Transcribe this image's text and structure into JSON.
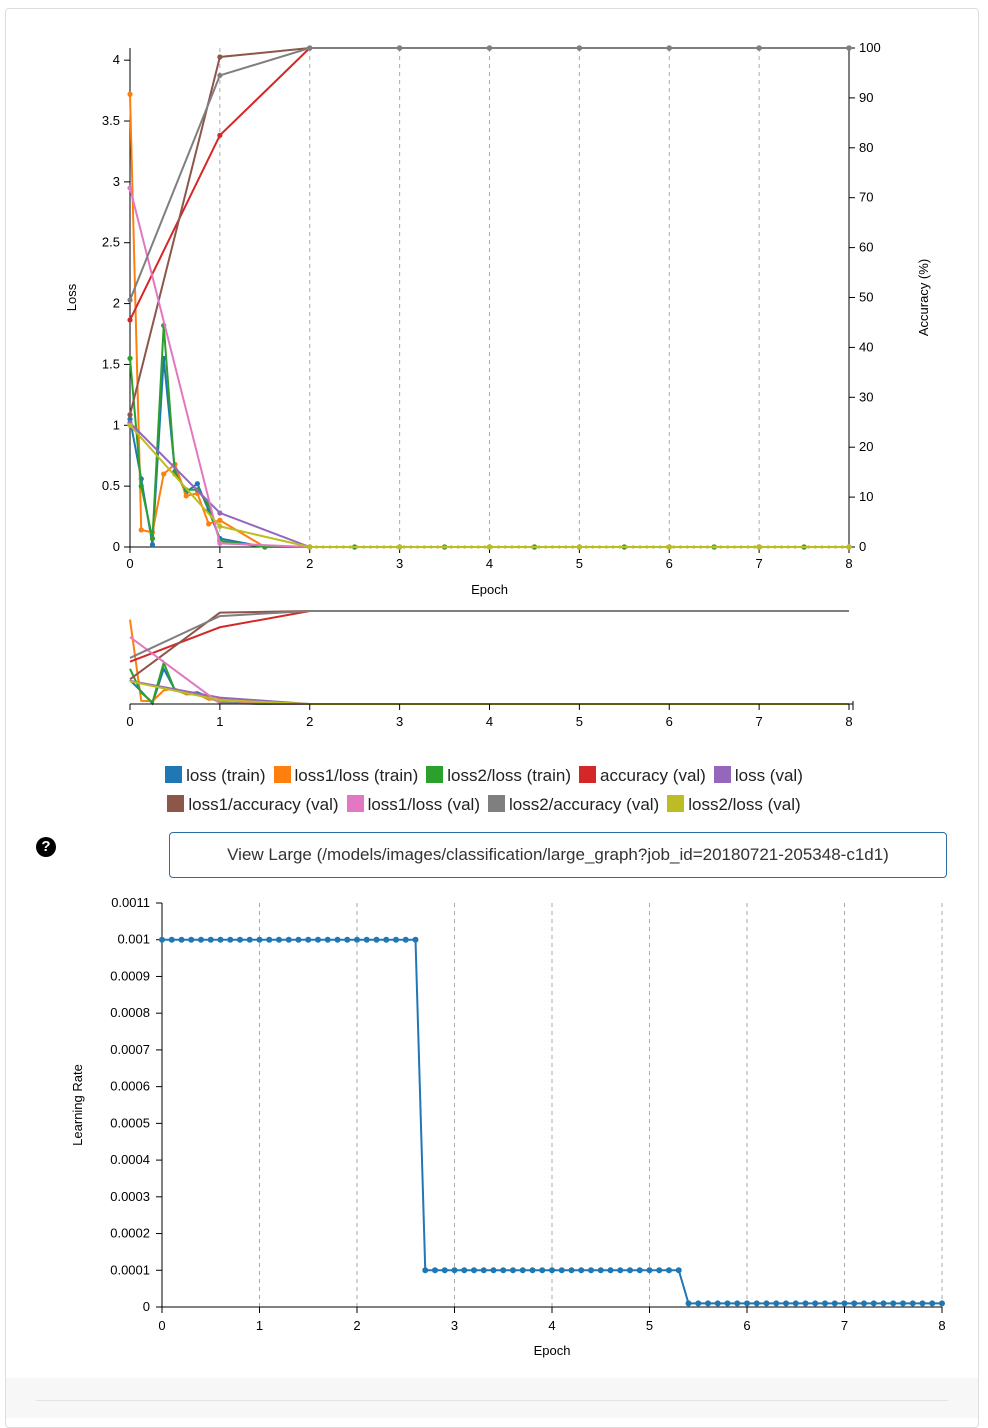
{
  "chart_data": [
    {
      "type": "line",
      "xlabel": "Epoch",
      "ylabel": "Loss",
      "y2label": "Accuracy (%)",
      "xlim": [
        0,
        8
      ],
      "ylim": [
        0,
        4.1
      ],
      "y2lim": [
        0,
        100
      ],
      "xticks": [
        "0",
        "1",
        "2",
        "3",
        "4",
        "5",
        "6",
        "7",
        "8"
      ],
      "yticks": [
        "0",
        "0.5",
        "1",
        "1.5",
        "2",
        "2.5",
        "3",
        "3.5",
        "4"
      ],
      "y2ticks": [
        "0",
        "10",
        "20",
        "30",
        "40",
        "50",
        "60",
        "70",
        "80",
        "90",
        "100"
      ],
      "grid_x": true,
      "series": [
        {
          "name": "loss (train)",
          "axis": "y",
          "color": "#1f77b4",
          "x": [
            0,
            0.125,
            0.25,
            0.375,
            0.5,
            0.625,
            0.75,
            0.875,
            1.0,
            1.5,
            2,
            2.5,
            3,
            3.5,
            4,
            4.5,
            5,
            5.5,
            6,
            6.5,
            7,
            7.5,
            8
          ],
          "y": [
            1.05,
            0.56,
            0.02,
            1.55,
            0.62,
            0.45,
            0.52,
            0.3,
            0.07,
            0,
            0,
            0,
            0,
            0,
            0,
            0,
            0,
            0,
            0,
            0,
            0,
            0,
            0
          ]
        },
        {
          "name": "loss1/loss (train)",
          "axis": "y",
          "color": "#ff7f0e",
          "x": [
            0,
            0.125,
            0.25,
            0.375,
            0.5,
            0.625,
            0.75,
            0.875,
            1.0,
            1.5,
            2,
            2.5,
            3,
            3.5,
            4,
            4.5,
            5,
            5.5,
            6,
            6.5,
            7,
            7.5,
            8
          ],
          "y": [
            3.72,
            0.14,
            0.12,
            0.6,
            0.68,
            0.42,
            0.44,
            0.19,
            0.22,
            0,
            0,
            0,
            0,
            0,
            0,
            0,
            0,
            0,
            0,
            0,
            0,
            0,
            0
          ]
        },
        {
          "name": "loss2/loss (train)",
          "axis": "y",
          "color": "#2ca02c",
          "x": [
            0,
            0.125,
            0.25,
            0.375,
            0.5,
            0.625,
            0.75,
            0.875,
            1.0,
            1.5,
            2,
            2.5,
            3,
            3.5,
            4,
            4.5,
            5,
            5.5,
            6,
            6.5,
            7,
            7.5,
            8
          ],
          "y": [
            1.55,
            0.5,
            0.07,
            1.82,
            0.6,
            0.47,
            0.47,
            0.35,
            0.05,
            0,
            0,
            0,
            0,
            0,
            0,
            0,
            0,
            0,
            0,
            0,
            0,
            0,
            0
          ]
        },
        {
          "name": "accuracy (val)",
          "axis": "y2",
          "color": "#d62728",
          "x": [
            0,
            1,
            2,
            3,
            4,
            5,
            6,
            7,
            8
          ],
          "y": [
            45.5,
            82.5,
            100,
            100,
            100,
            100,
            100,
            100,
            100
          ]
        },
        {
          "name": "loss (val)",
          "axis": "y",
          "color": "#9467bd",
          "x": [
            0,
            1,
            2,
            3,
            4,
            5,
            6,
            7,
            8
          ],
          "y": [
            1.02,
            0.28,
            0,
            0,
            0,
            0,
            0,
            0,
            0
          ]
        },
        {
          "name": "loss1/accuracy (val)",
          "axis": "y2",
          "color": "#8c564b",
          "x": [
            0,
            1,
            2,
            3,
            4,
            5,
            6,
            7,
            8
          ],
          "y": [
            26.5,
            98.2,
            100,
            100,
            100,
            100,
            100,
            100,
            100
          ]
        },
        {
          "name": "loss1/loss (val)",
          "axis": "y",
          "color": "#e377c2",
          "x": [
            0,
            1,
            2,
            3,
            4,
            5,
            6,
            7,
            8
          ],
          "y": [
            2.95,
            0.03,
            0,
            0,
            0,
            0,
            0,
            0,
            0
          ]
        },
        {
          "name": "loss2/accuracy (val)",
          "axis": "y2",
          "color": "#7f7f7f",
          "x": [
            0,
            1,
            2,
            3,
            4,
            5,
            6,
            7,
            8
          ],
          "y": [
            49.5,
            94.5,
            100,
            100,
            100,
            100,
            100,
            100,
            100
          ]
        },
        {
          "name": "loss2/loss (val)",
          "axis": "y",
          "color": "#bcbd22",
          "x": [
            0,
            1,
            2,
            3,
            4,
            5,
            6,
            7,
            8
          ],
          "y": [
            1.0,
            0.17,
            0,
            0,
            0,
            0,
            0,
            0,
            0
          ]
        }
      ],
      "overview": {
        "xlim": [
          0,
          8
        ],
        "xticks": [
          "0",
          "1",
          "2",
          "3",
          "4",
          "5",
          "6",
          "7",
          "8"
        ]
      }
    },
    {
      "type": "line",
      "xlabel": "Epoch",
      "ylabel": "Learning Rate",
      "xlim": [
        0,
        8
      ],
      "ylim": [
        0,
        0.0011
      ],
      "xticks": [
        "0",
        "1",
        "2",
        "3",
        "4",
        "5",
        "6",
        "7",
        "8"
      ],
      "yticks": [
        "0",
        "0.0001",
        "0.0002",
        "0.0003",
        "0.0004",
        "0.0005",
        "0.0006",
        "0.0007",
        "0.0008",
        "0.0009",
        "0.001",
        "0.0011"
      ],
      "grid_x": true,
      "series": [
        {
          "name": "learning rate",
          "color": "#1f77b4",
          "segments": [
            {
              "from": 0,
              "to": 2.6,
              "value": 0.001
            },
            {
              "from": 2.7,
              "to": 5.3,
              "value": 0.0001
            },
            {
              "from": 5.4,
              "to": 8.0,
              "value": 1e-05
            }
          ],
          "step": 0.1
        }
      ]
    }
  ],
  "legend": [
    {
      "label": "loss (train)",
      "color": "#1f77b4"
    },
    {
      "label": "loss1/loss (train)",
      "color": "#ff7f0e"
    },
    {
      "label": "loss2/loss (train)",
      "color": "#2ca02c"
    },
    {
      "label": "accuracy (val)",
      "color": "#d62728"
    },
    {
      "label": "loss (val)",
      "color": "#9467bd"
    },
    {
      "label": "loss1/accuracy (val)",
      "color": "#8c564b"
    },
    {
      "label": "loss1/loss (val)",
      "color": "#e377c2"
    },
    {
      "label": "loss2/accuracy (val)",
      "color": "#7f7f7f"
    },
    {
      "label": "loss2/loss (val)",
      "color": "#bcbd22"
    }
  ],
  "help_icon": {
    "glyph": "?",
    "icon": "question-circle-icon"
  },
  "view_large_label": "View Large (/models/images/classification/large_graph?job_id=20180721-205348-c1d1)"
}
